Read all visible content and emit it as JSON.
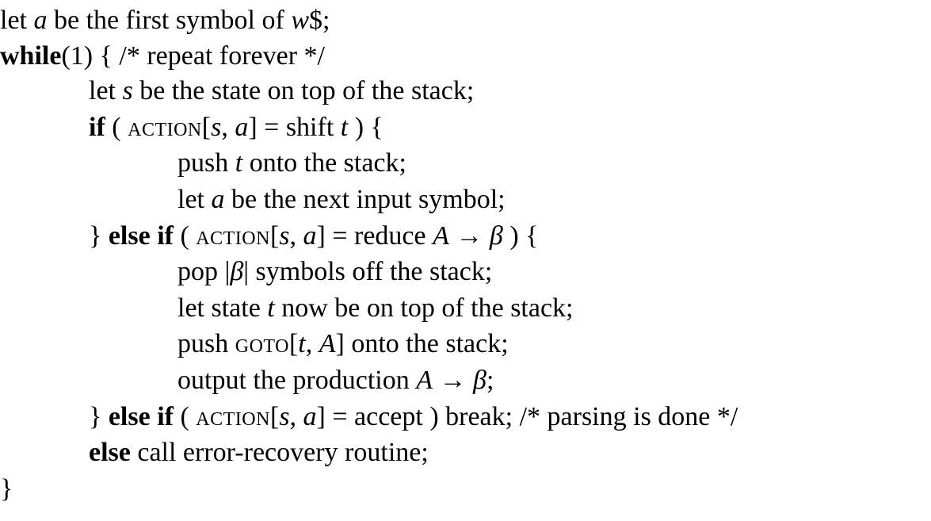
{
  "lines": [
    {
      "tokens": [
        "let ",
        "a",
        " be the first symbol of ",
        "w",
        "$;"
      ]
    },
    {
      "tokens": [
        "while",
        "(1) { /* repeat forever */"
      ]
    },
    {
      "tokens": [
        "let ",
        "s",
        " be the state on top of the stack;"
      ]
    },
    {
      "tokens": [
        "if",
        " ( ",
        "action",
        "[",
        "s",
        ", ",
        "a",
        "] = shift ",
        "t",
        " ) {"
      ]
    },
    {
      "tokens": [
        "push ",
        "t",
        " onto the stack;"
      ]
    },
    {
      "tokens": [
        "let ",
        "a",
        " be the next input symbol;"
      ]
    },
    {
      "tokens": [
        "} ",
        "else if",
        " ( ",
        "action",
        "[",
        "s",
        ", ",
        "a",
        "] = reduce ",
        "A",
        " → ",
        "β",
        " ) {"
      ]
    },
    {
      "tokens": [
        "pop |",
        "β",
        "| symbols off the stack;"
      ]
    },
    {
      "tokens": [
        "let state ",
        "t",
        " now be on top of the stack;"
      ]
    },
    {
      "tokens": [
        "push ",
        "goto",
        "[",
        "t",
        ", ",
        "A",
        "] onto the stack;"
      ]
    },
    {
      "tokens": [
        "output the production ",
        "A",
        " → ",
        "β",
        ";"
      ]
    },
    {
      "tokens": [
        "} ",
        "else if",
        " ( ",
        "action",
        "[",
        "s",
        ", ",
        "a",
        "] = accept ) break; /* parsing is done */"
      ]
    },
    {
      "tokens": [
        "else",
        " call error-recovery routine;"
      ]
    },
    {
      "tokens": [
        "}"
      ]
    }
  ]
}
